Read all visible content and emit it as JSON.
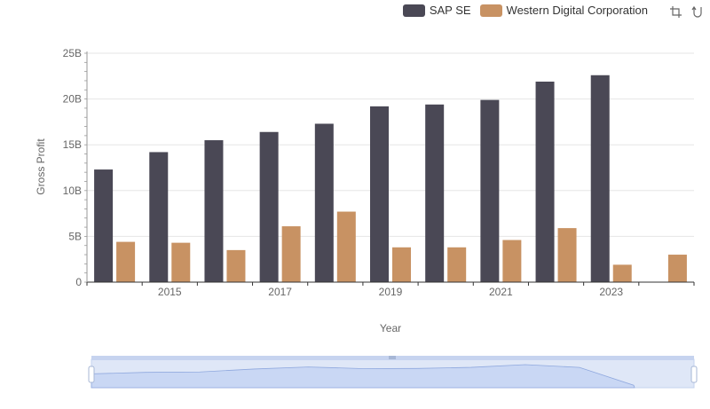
{
  "chart_data": {
    "type": "bar",
    "xlabel": "Year",
    "ylabel": "Gross Profit",
    "x": [
      2014,
      2015,
      2016,
      2017,
      2018,
      2019,
      2020,
      2021,
      2022,
      2023,
      2024
    ],
    "x_tick_labels": [
      "2015",
      "2017",
      "2019",
      "2021",
      "2023"
    ],
    "y_tick_labels": [
      "0",
      "5B",
      "10B",
      "15B",
      "20B",
      "25B"
    ],
    "ylim": [
      0,
      25000000000
    ],
    "grid": true,
    "legend_position": "top-right",
    "series": [
      {
        "name": "SAP SE",
        "color": "#4a4855",
        "values": [
          12300000000,
          14200000000,
          15500000000,
          16400000000,
          17300000000,
          19200000000,
          19400000000,
          19900000000,
          21900000000,
          22600000000,
          null
        ]
      },
      {
        "name": "Western Digital Corporation",
        "color": "#c89263",
        "values": [
          4400000000,
          4300000000,
          3500000000,
          6100000000,
          7700000000,
          3800000000,
          3800000000,
          4600000000,
          5900000000,
          1900000000,
          3000000000
        ]
      }
    ]
  },
  "toolbox": {
    "zoom_icon": "zoom-icon",
    "reset_icon": "restore-icon"
  }
}
